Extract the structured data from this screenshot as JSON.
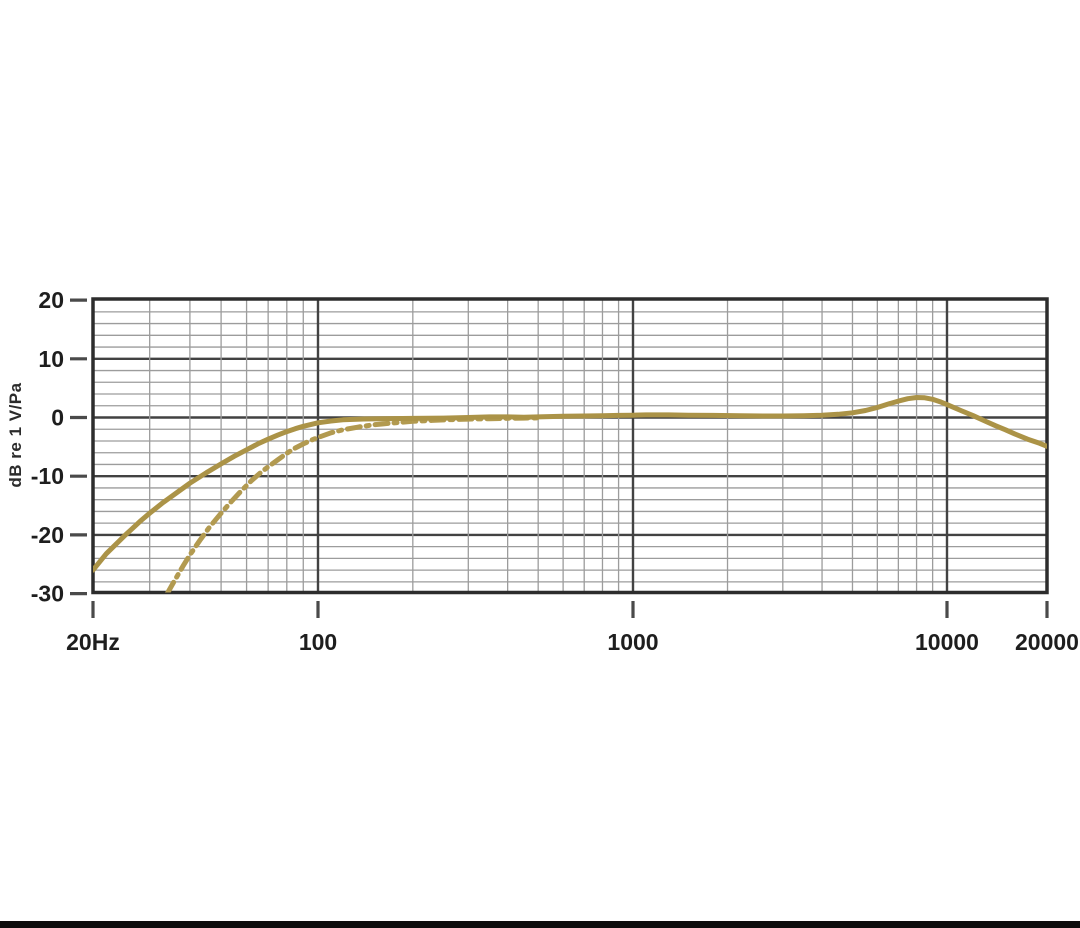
{
  "figure": {
    "background_color": "#ffffff",
    "bottom_bar_color": "#0c0c0c"
  },
  "chart_data": {
    "type": "line",
    "title": "",
    "ylabel": "dB re 1 V/Pa",
    "xlabel": "",
    "legend": "none",
    "grid": "log-log graph paper, minor gridlines on",
    "x_axis": {
      "scale": "log",
      "unit": "Hz",
      "range": [
        20,
        20000
      ],
      "tick_values": [
        20,
        100,
        1000,
        10000,
        20000
      ],
      "tick_labels": [
        "20Hz",
        "100",
        "1000",
        "10000",
        "20000"
      ]
    },
    "y_axis": {
      "range": [
        -30,
        20
      ],
      "major_step": 10,
      "minor_step": 2,
      "tick_values": [
        20,
        10,
        0,
        -10,
        -20,
        -30
      ],
      "tick_labels": [
        "20",
        "10",
        "0",
        "-10",
        "-20",
        "-30"
      ]
    },
    "colors": {
      "curve_solid": "#ab9347",
      "curve_dashed": "#b29a50",
      "grid_minor": "#9c9c9c",
      "grid_major": "#424242",
      "border": "#2d2d2d",
      "tick": "#4a4a4a"
    },
    "series": [
      {
        "name": "flat-response-dash-dot",
        "style": "dash-dot",
        "points": [
          [
            34,
            -30
          ],
          [
            36,
            -27.6
          ],
          [
            38,
            -25.4
          ],
          [
            40,
            -23.4
          ],
          [
            43,
            -20.9
          ],
          [
            46,
            -18.7
          ],
          [
            50,
            -16.3
          ],
          [
            54,
            -14.2
          ],
          [
            58,
            -12.4
          ],
          [
            62,
            -10.8
          ],
          [
            66,
            -9.5
          ],
          [
            70,
            -8.4
          ],
          [
            75,
            -7.2
          ],
          [
            80,
            -6.1
          ],
          [
            85,
            -5.2
          ],
          [
            90,
            -4.5
          ],
          [
            95,
            -3.9
          ],
          [
            100,
            -3.4
          ],
          [
            110,
            -2.6
          ],
          [
            120,
            -2.1
          ],
          [
            135,
            -1.6
          ],
          [
            150,
            -1.25
          ],
          [
            170,
            -0.95
          ],
          [
            200,
            -0.65
          ],
          [
            230,
            -0.5
          ],
          [
            260,
            -0.38
          ],
          [
            300,
            -0.28
          ],
          [
            350,
            -0.2
          ],
          [
            400,
            -0.14
          ],
          [
            450,
            -0.1
          ],
          [
            500,
            -0.07
          ]
        ]
      },
      {
        "name": "main-response-solid",
        "style": "solid",
        "points": [
          [
            20,
            -26
          ],
          [
            22,
            -23.2
          ],
          [
            25,
            -20.2
          ],
          [
            28,
            -17.7
          ],
          [
            30,
            -16.3
          ],
          [
            33,
            -14.5
          ],
          [
            36,
            -13
          ],
          [
            40,
            -11.2
          ],
          [
            45,
            -9.4
          ],
          [
            50,
            -7.9
          ],
          [
            55,
            -6.6
          ],
          [
            60,
            -5.5
          ],
          [
            65,
            -4.5
          ],
          [
            70,
            -3.7
          ],
          [
            75,
            -3
          ],
          [
            80,
            -2.4
          ],
          [
            85,
            -1.9
          ],
          [
            90,
            -1.5
          ],
          [
            100,
            -0.9
          ],
          [
            110,
            -0.6
          ],
          [
            120,
            -0.4
          ],
          [
            140,
            -0.25
          ],
          [
            160,
            -0.2
          ],
          [
            200,
            -0.15
          ],
          [
            250,
            -0.1
          ],
          [
            300,
            0
          ],
          [
            350,
            0.1
          ],
          [
            400,
            0.1
          ],
          [
            450,
            0.05
          ],
          [
            500,
            0.1
          ],
          [
            600,
            0.2
          ],
          [
            700,
            0.25
          ],
          [
            800,
            0.3
          ],
          [
            900,
            0.35
          ],
          [
            1000,
            0.4
          ],
          [
            1100,
            0.45
          ],
          [
            1300,
            0.45
          ],
          [
            1500,
            0.4
          ],
          [
            1800,
            0.35
          ],
          [
            2200,
            0.3
          ],
          [
            2600,
            0.25
          ],
          [
            3000,
            0.25
          ],
          [
            3500,
            0.3
          ],
          [
            4000,
            0.4
          ],
          [
            4500,
            0.55
          ],
          [
            5000,
            0.8
          ],
          [
            5500,
            1.2
          ],
          [
            6000,
            1.7
          ],
          [
            6500,
            2.3
          ],
          [
            7000,
            2.8
          ],
          [
            7500,
            3.2
          ],
          [
            8000,
            3.4
          ],
          [
            8500,
            3.35
          ],
          [
            9000,
            3.1
          ],
          [
            9500,
            2.7
          ],
          [
            10000,
            2.2
          ],
          [
            11000,
            1.2
          ],
          [
            12000,
            0.3
          ],
          [
            13000,
            -0.6
          ],
          [
            14000,
            -1.4
          ],
          [
            15000,
            -2.1
          ],
          [
            16000,
            -2.8
          ],
          [
            17500,
            -3.7
          ],
          [
            19000,
            -4.4
          ],
          [
            20000,
            -4.9
          ]
        ]
      }
    ]
  }
}
